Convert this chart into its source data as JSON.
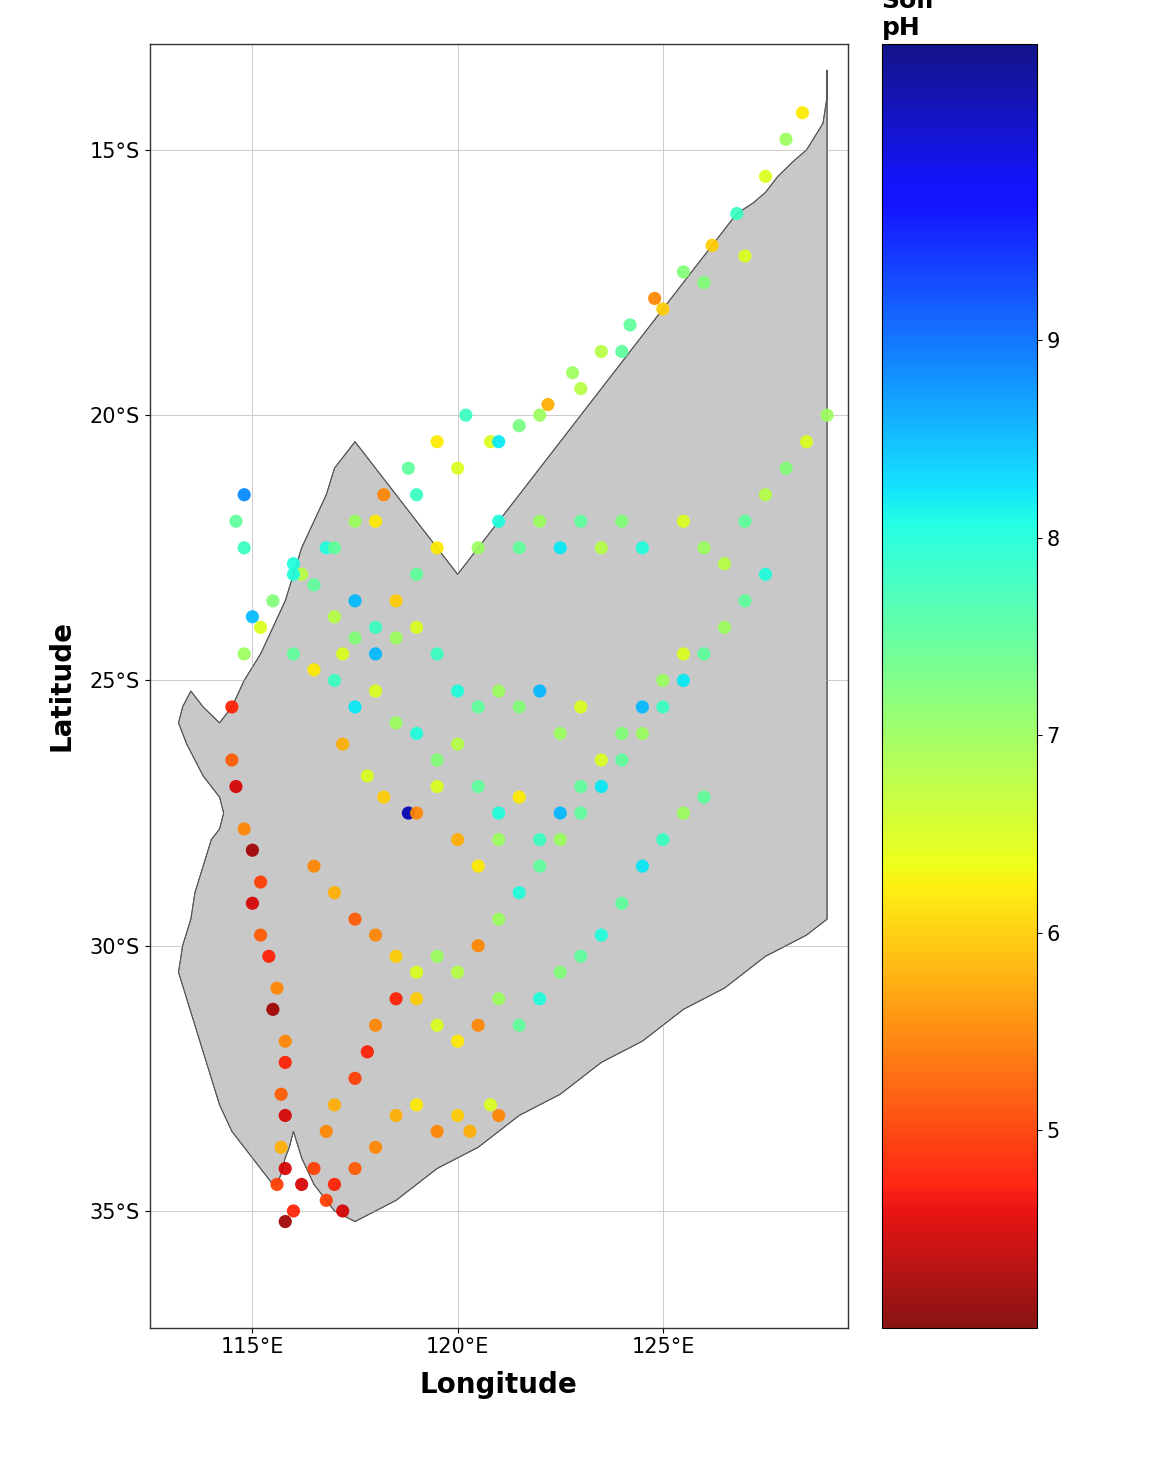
{
  "lon_min": 112.5,
  "lon_max": 129.5,
  "lat_min": -37.2,
  "lat_max": -13.0,
  "xlabel": "Longitude",
  "ylabel": "Latitude",
  "colorbar_label": "Soil\npH",
  "ph_min": 4.0,
  "ph_max": 10.5,
  "colorbar_ticks": [
    5,
    6,
    7,
    8,
    9
  ],
  "xticks": [
    115,
    120,
    125
  ],
  "xtick_labels": [
    "115°E",
    "120°E",
    "125°E"
  ],
  "yticks": [
    -15,
    -20,
    -25,
    -30,
    -35
  ],
  "ytick_labels": [
    "15°S",
    "20°S",
    "25°S",
    "30°S",
    "35°S"
  ],
  "map_fill": "#c8c8c8",
  "map_edge": "#555555",
  "plot_background": "#ffffff",
  "grid_color": "#cccccc",
  "dot_size": 90,
  "dot_alpha": 0.92,
  "cmap": "jet_r",
  "wa_coast_lon": [
    129.0,
    129.0,
    128.9,
    128.5,
    128.2,
    127.8,
    127.5,
    127.2,
    126.8,
    126.5,
    126.2,
    126.0,
    125.8,
    125.5,
    125.2,
    125.0,
    124.8,
    124.5,
    124.2,
    124.0,
    123.8,
    123.5,
    123.2,
    123.0,
    122.8,
    122.5,
    122.2,
    122.0,
    121.8,
    121.5,
    121.2,
    121.0,
    120.8,
    120.5,
    120.2,
    120.0,
    119.8,
    119.5,
    119.2,
    119.0,
    118.8,
    118.5,
    118.2,
    118.0,
    117.8,
    117.5,
    117.2,
    117.0,
    116.8,
    116.5,
    116.2,
    116.0,
    115.8,
    115.5,
    115.2,
    114.8,
    114.5,
    114.2,
    113.8,
    113.5,
    113.3,
    113.2,
    113.4,
    113.6,
    113.8,
    114.0,
    114.2,
    114.3,
    114.2,
    114.0,
    113.8,
    113.6,
    113.5,
    113.3,
    113.2,
    113.4,
    113.6,
    113.8,
    114.0,
    114.2,
    114.5,
    114.8,
    115.0,
    115.2,
    115.5,
    115.6,
    115.7,
    115.8,
    115.9,
    116.0,
    116.2,
    116.5,
    117.0,
    117.5,
    118.0,
    118.5,
    119.0,
    119.5,
    120.0,
    120.5,
    121.0,
    121.5,
    122.0,
    122.5,
    123.0,
    123.5,
    124.0,
    124.5,
    125.0,
    125.5,
    126.0,
    126.5,
    127.0,
    127.5,
    128.0,
    128.5,
    129.0,
    129.0
  ],
  "wa_coast_lat": [
    -13.5,
    -14.0,
    -14.5,
    -15.0,
    -15.2,
    -15.5,
    -15.8,
    -16.0,
    -16.2,
    -16.5,
    -16.8,
    -17.0,
    -17.2,
    -17.5,
    -17.8,
    -18.0,
    -18.2,
    -18.5,
    -18.8,
    -19.0,
    -19.2,
    -19.5,
    -19.8,
    -20.0,
    -20.2,
    -20.5,
    -20.8,
    -21.0,
    -21.2,
    -21.5,
    -21.8,
    -22.0,
    -22.2,
    -22.5,
    -22.8,
    -23.0,
    -22.8,
    -22.5,
    -22.2,
    -22.0,
    -21.8,
    -21.5,
    -21.2,
    -21.0,
    -20.8,
    -20.5,
    -20.8,
    -21.0,
    -21.5,
    -22.0,
    -22.5,
    -23.0,
    -23.5,
    -24.0,
    -24.5,
    -25.0,
    -25.5,
    -25.8,
    -25.5,
    -25.2,
    -25.5,
    -25.8,
    -26.2,
    -26.5,
    -26.8,
    -27.0,
    -27.2,
    -27.5,
    -27.8,
    -28.0,
    -28.5,
    -29.0,
    -29.5,
    -30.0,
    -30.5,
    -31.0,
    -31.5,
    -32.0,
    -32.5,
    -33.0,
    -33.5,
    -33.8,
    -34.0,
    -34.2,
    -34.5,
    -34.5,
    -34.3,
    -34.0,
    -33.8,
    -33.5,
    -34.0,
    -34.5,
    -35.0,
    -35.2,
    -35.0,
    -34.8,
    -34.5,
    -34.2,
    -34.0,
    -33.8,
    -33.5,
    -33.2,
    -33.0,
    -32.8,
    -32.5,
    -32.2,
    -32.0,
    -31.8,
    -31.5,
    -31.2,
    -31.0,
    -30.8,
    -30.5,
    -30.2,
    -30.0,
    -29.8,
    -29.5,
    -13.5
  ],
  "sample_points": [
    [
      128.4,
      -14.3,
      6.2
    ],
    [
      128.0,
      -14.8,
      7.0
    ],
    [
      127.5,
      -15.5,
      6.5
    ],
    [
      126.8,
      -16.2,
      7.8
    ],
    [
      126.2,
      -16.8,
      6.0
    ],
    [
      125.5,
      -17.3,
      7.2
    ],
    [
      124.8,
      -17.8,
      5.5
    ],
    [
      124.2,
      -18.3,
      7.5
    ],
    [
      123.5,
      -18.8,
      6.8
    ],
    [
      122.8,
      -19.2,
      7.0
    ],
    [
      122.2,
      -19.8,
      5.8
    ],
    [
      121.5,
      -20.2,
      7.3
    ],
    [
      120.8,
      -20.5,
      6.5
    ],
    [
      120.2,
      -20.0,
      7.8
    ],
    [
      119.5,
      -20.5,
      6.2
    ],
    [
      118.8,
      -21.0,
      7.5
    ],
    [
      118.2,
      -21.5,
      5.5
    ],
    [
      117.5,
      -22.0,
      7.0
    ],
    [
      116.8,
      -22.5,
      8.0
    ],
    [
      116.2,
      -23.0,
      6.8
    ],
    [
      115.5,
      -23.5,
      7.2
    ],
    [
      115.0,
      -23.8,
      8.5
    ],
    [
      114.8,
      -22.5,
      7.8
    ],
    [
      127.0,
      -17.0,
      6.5
    ],
    [
      126.0,
      -17.5,
      7.2
    ],
    [
      125.0,
      -18.0,
      6.0
    ],
    [
      124.0,
      -18.8,
      7.5
    ],
    [
      123.0,
      -19.5,
      6.8
    ],
    [
      122.0,
      -20.0,
      7.0
    ],
    [
      121.0,
      -20.5,
      8.2
    ],
    [
      120.0,
      -21.0,
      6.5
    ],
    [
      119.0,
      -21.5,
      7.8
    ],
    [
      118.0,
      -22.0,
      6.2
    ],
    [
      117.0,
      -22.5,
      7.5
    ],
    [
      116.0,
      -23.0,
      8.0
    ],
    [
      115.2,
      -24.0,
      6.5
    ],
    [
      114.8,
      -24.5,
      7.0
    ],
    [
      116.0,
      -24.5,
      7.5
    ],
    [
      116.5,
      -24.8,
      6.2
    ],
    [
      117.0,
      -25.0,
      7.8
    ],
    [
      117.5,
      -25.5,
      8.2
    ],
    [
      118.0,
      -25.2,
      6.5
    ],
    [
      118.5,
      -25.8,
      7.0
    ],
    [
      119.0,
      -26.0,
      8.0
    ],
    [
      119.5,
      -26.5,
      7.2
    ],
    [
      120.0,
      -26.2,
      6.8
    ],
    [
      120.5,
      -27.0,
      7.5
    ],
    [
      121.0,
      -27.5,
      8.0
    ],
    [
      121.5,
      -27.2,
      6.2
    ],
    [
      122.0,
      -28.0,
      7.8
    ],
    [
      122.5,
      -27.5,
      8.5
    ],
    [
      123.0,
      -27.0,
      7.5
    ],
    [
      123.5,
      -26.5,
      6.5
    ],
    [
      124.0,
      -26.0,
      7.2
    ],
    [
      124.5,
      -25.5,
      8.5
    ],
    [
      125.0,
      -25.0,
      7.0
    ],
    [
      125.5,
      -24.5,
      6.5
    ],
    [
      118.8,
      -27.5,
      10.2
    ],
    [
      114.5,
      -25.5,
      4.8
    ],
    [
      114.5,
      -26.5,
      5.2
    ],
    [
      114.6,
      -27.0,
      4.5
    ],
    [
      114.8,
      -27.8,
      5.5
    ],
    [
      115.0,
      -28.2,
      4.2
    ],
    [
      115.2,
      -28.8,
      5.0
    ],
    [
      115.0,
      -29.2,
      4.5
    ],
    [
      115.2,
      -29.8,
      5.2
    ],
    [
      115.4,
      -30.2,
      4.8
    ],
    [
      115.6,
      -30.8,
      5.5
    ],
    [
      115.5,
      -31.2,
      4.2
    ],
    [
      115.8,
      -31.8,
      5.5
    ],
    [
      115.8,
      -32.2,
      4.8
    ],
    [
      115.7,
      -32.8,
      5.2
    ],
    [
      115.8,
      -33.2,
      4.5
    ],
    [
      115.7,
      -33.8,
      5.8
    ],
    [
      115.8,
      -34.2,
      4.5
    ],
    [
      115.6,
      -34.5,
      5.0
    ],
    [
      115.8,
      -35.2,
      4.2
    ],
    [
      116.0,
      -35.0,
      4.8
    ],
    [
      116.2,
      -34.5,
      4.5
    ],
    [
      116.5,
      -34.2,
      5.0
    ],
    [
      117.0,
      -34.5,
      4.8
    ],
    [
      117.5,
      -34.2,
      5.2
    ],
    [
      118.0,
      -33.8,
      5.5
    ],
    [
      118.5,
      -33.2,
      5.8
    ],
    [
      119.0,
      -33.0,
      6.2
    ],
    [
      119.5,
      -33.5,
      5.5
    ],
    [
      120.0,
      -33.2,
      6.0
    ],
    [
      120.3,
      -33.5,
      5.8
    ],
    [
      120.8,
      -33.0,
      6.5
    ],
    [
      121.0,
      -33.2,
      5.5
    ],
    [
      116.8,
      -34.8,
      5.0
    ],
    [
      117.2,
      -35.0,
      4.5
    ],
    [
      116.8,
      -33.5,
      5.5
    ],
    [
      117.0,
      -33.0,
      5.8
    ],
    [
      117.5,
      -32.5,
      5.0
    ],
    [
      117.8,
      -32.0,
      4.8
    ],
    [
      118.0,
      -31.5,
      5.5
    ],
    [
      118.5,
      -31.0,
      4.8
    ],
    [
      119.0,
      -31.0,
      6.0
    ],
    [
      119.5,
      -31.5,
      6.5
    ],
    [
      120.0,
      -31.8,
      6.2
    ],
    [
      120.5,
      -31.5,
      5.5
    ],
    [
      121.0,
      -31.0,
      7.0
    ],
    [
      121.5,
      -31.5,
      7.5
    ],
    [
      122.0,
      -31.0,
      8.0
    ],
    [
      122.5,
      -30.5,
      7.2
    ],
    [
      123.0,
      -30.2,
      7.5
    ],
    [
      123.5,
      -29.8,
      8.0
    ],
    [
      124.0,
      -29.2,
      7.5
    ],
    [
      124.5,
      -28.5,
      8.2
    ],
    [
      125.0,
      -28.0,
      7.8
    ],
    [
      125.5,
      -27.5,
      7.0
    ],
    [
      126.0,
      -27.2,
      7.5
    ],
    [
      116.5,
      -28.5,
      5.5
    ],
    [
      117.0,
      -29.0,
      5.8
    ],
    [
      117.5,
      -29.5,
      5.2
    ],
    [
      118.0,
      -29.8,
      5.5
    ],
    [
      118.5,
      -30.2,
      6.0
    ],
    [
      119.0,
      -30.5,
      6.5
    ],
    [
      119.5,
      -30.2,
      7.0
    ],
    [
      120.0,
      -30.5,
      6.8
    ],
    [
      120.5,
      -30.0,
      5.5
    ],
    [
      121.0,
      -29.5,
      7.0
    ],
    [
      121.5,
      -29.0,
      8.0
    ],
    [
      122.0,
      -28.5,
      7.5
    ],
    [
      122.5,
      -28.0,
      7.0
    ],
    [
      123.0,
      -27.5,
      7.5
    ],
    [
      123.5,
      -27.0,
      8.2
    ],
    [
      124.0,
      -26.5,
      7.5
    ],
    [
      124.5,
      -26.0,
      7.0
    ],
    [
      125.0,
      -25.5,
      7.8
    ],
    [
      125.5,
      -25.0,
      8.2
    ],
    [
      126.0,
      -24.5,
      7.5
    ],
    [
      126.5,
      -24.0,
      7.0
    ],
    [
      127.0,
      -23.5,
      7.5
    ],
    [
      127.5,
      -23.0,
      8.0
    ],
    [
      116.0,
      -22.8,
      8.0
    ],
    [
      116.5,
      -23.2,
      7.5
    ],
    [
      117.0,
      -23.8,
      6.8
    ],
    [
      117.5,
      -24.2,
      7.2
    ],
    [
      118.0,
      -24.5,
      8.5
    ],
    [
      118.5,
      -24.2,
      7.0
    ],
    [
      119.0,
      -24.0,
      6.5
    ],
    [
      119.5,
      -24.5,
      7.8
    ],
    [
      120.0,
      -25.2,
      8.0
    ],
    [
      120.5,
      -25.5,
      7.5
    ],
    [
      121.0,
      -25.2,
      7.0
    ],
    [
      121.5,
      -25.5,
      7.2
    ],
    [
      122.0,
      -25.2,
      8.5
    ],
    [
      122.5,
      -26.0,
      7.0
    ],
    [
      123.0,
      -25.5,
      6.5
    ],
    [
      117.2,
      -26.2,
      5.8
    ],
    [
      117.8,
      -26.8,
      6.5
    ],
    [
      118.2,
      -27.2,
      6.0
    ],
    [
      119.0,
      -27.5,
      5.5
    ],
    [
      119.5,
      -27.0,
      6.5
    ],
    [
      120.0,
      -28.0,
      5.8
    ],
    [
      120.5,
      -28.5,
      6.2
    ],
    [
      121.0,
      -28.0,
      7.0
    ],
    [
      114.8,
      -21.5,
      8.8
    ],
    [
      114.6,
      -22.0,
      7.5
    ],
    [
      125.5,
      -22.0,
      6.5
    ],
    [
      126.0,
      -22.5,
      7.0
    ],
    [
      126.5,
      -22.8,
      6.8
    ],
    [
      127.0,
      -22.0,
      7.5
    ],
    [
      127.5,
      -21.5,
      6.8
    ],
    [
      128.0,
      -21.0,
      7.2
    ],
    [
      128.5,
      -20.5,
      6.5
    ],
    [
      129.0,
      -20.0,
      7.0
    ],
    [
      120.5,
      -22.5,
      7.0
    ],
    [
      121.0,
      -22.0,
      8.0
    ],
    [
      121.5,
      -22.5,
      7.5
    ],
    [
      122.0,
      -22.0,
      7.0
    ],
    [
      122.5,
      -22.5,
      8.2
    ],
    [
      123.0,
      -22.0,
      7.5
    ],
    [
      123.5,
      -22.5,
      6.8
    ],
    [
      124.0,
      -22.0,
      7.2
    ],
    [
      124.5,
      -22.5,
      8.0
    ],
    [
      119.5,
      -22.5,
      6.2
    ],
    [
      119.0,
      -23.0,
      7.5
    ],
    [
      118.5,
      -23.5,
      6.0
    ],
    [
      118.0,
      -24.0,
      7.8
    ],
    [
      117.5,
      -23.5,
      8.5
    ],
    [
      117.2,
      -24.5,
      6.5
    ]
  ]
}
